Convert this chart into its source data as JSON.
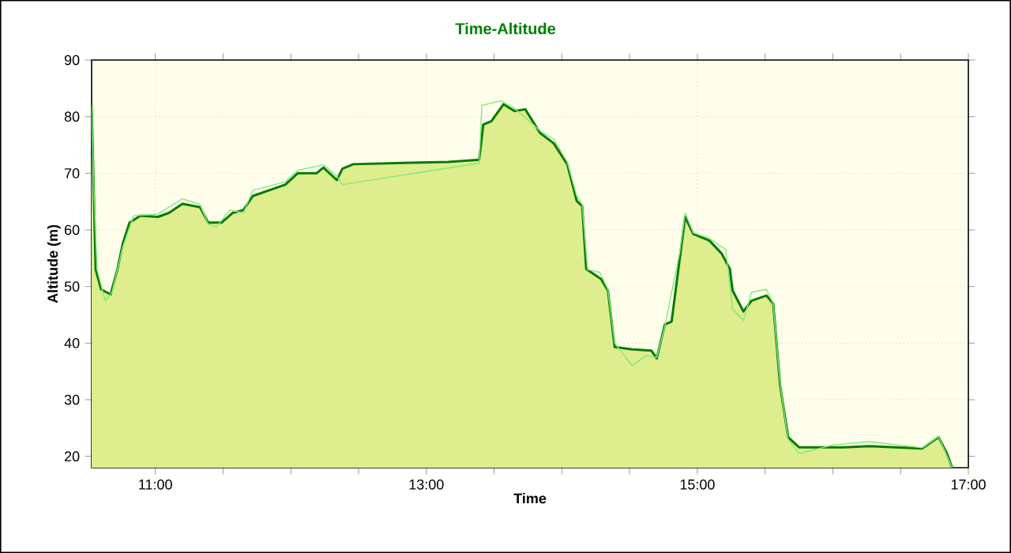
{
  "chart_data": {
    "type": "area",
    "title": "Time-Altitude",
    "xlabel": "Time",
    "ylabel": "Altitude (m)",
    "xlim": [
      10.53,
      17
    ],
    "ylim": [
      18,
      90
    ],
    "xticks": [
      {
        "value": 11,
        "label": "11:00"
      },
      {
        "value": 11.5,
        "label": null
      },
      {
        "value": 12,
        "label": null
      },
      {
        "value": 12.5,
        "label": null
      },
      {
        "value": 13,
        "label": "13:00"
      },
      {
        "value": 13.5,
        "label": null
      },
      {
        "value": 14,
        "label": null
      },
      {
        "value": 14.5,
        "label": null
      },
      {
        "value": 15,
        "label": "15:00"
      },
      {
        "value": 15.5,
        "label": null
      },
      {
        "value": 16,
        "label": null
      },
      {
        "value": 16.5,
        "label": null
      },
      {
        "value": 17,
        "label": "17:00"
      }
    ],
    "yticks": [
      20,
      30,
      40,
      50,
      60,
      70,
      80,
      90
    ],
    "grid": true,
    "marker": "none",
    "line_style": "solid",
    "series": [
      {
        "color": "#087a08",
        "x": [
          10.53,
          10.55,
          10.56,
          10.6,
          10.67,
          10.72,
          10.76,
          10.81,
          10.89,
          11.02,
          11.1,
          11.2,
          11.33,
          11.39,
          11.49,
          11.57,
          11.65,
          11.72,
          11.84,
          11.96,
          12.05,
          12.19,
          12.24,
          12.34,
          12.38,
          12.46,
          12.77,
          13.16,
          13.39,
          13.42,
          13.48,
          13.57,
          13.65,
          13.73,
          13.84,
          13.94,
          14.04,
          14.11,
          14.15,
          14.18,
          14.29,
          14.34,
          14.39,
          14.52,
          14.66,
          14.7,
          14.76,
          14.81,
          14.87,
          14.91,
          14.97,
          15.09,
          15.18,
          15.24,
          15.26,
          15.34,
          15.4,
          15.51,
          15.56,
          15.61,
          15.67,
          15.75,
          16.08,
          16.27,
          16.66,
          16.78,
          16.84,
          16.88
        ],
        "values": [
          82,
          63,
          53,
          49.5,
          48.6,
          53,
          57.6,
          61.3,
          62.5,
          62.3,
          63,
          64.6,
          64,
          61.3,
          61.3,
          63,
          63.5,
          66,
          67,
          68,
          70,
          70,
          71,
          68.8,
          70.8,
          71.6,
          71.8,
          72,
          72.4,
          78.6,
          79.2,
          82.2,
          81,
          81.3,
          77.1,
          75.3,
          71.6,
          65.1,
          64.2,
          53.1,
          51.3,
          49.3,
          39.3,
          38.9,
          38.7,
          37.3,
          43.3,
          43.8,
          54.9,
          62.3,
          59.3,
          58.1,
          55.8,
          53.1,
          49.3,
          45.6,
          47.5,
          48.4,
          47,
          32.7,
          23.4,
          21.6,
          21.6,
          21.8,
          21.4,
          23.4,
          20.6,
          18
        ]
      },
      {
        "type": "line",
        "color": "#80e880",
        "x": [
          10.53,
          10.55,
          10.57,
          10.63,
          10.68,
          10.76,
          10.84,
          11.02,
          11.2,
          11.33,
          11.39,
          11.45,
          11.55,
          11.65,
          11.72,
          11.96,
          12.05,
          12.24,
          12.34,
          12.38,
          13.39,
          13.41,
          13.55,
          13.65,
          13.84,
          13.94,
          14.04,
          14.11,
          14.15,
          14.19,
          14.28,
          14.34,
          14.39,
          14.52,
          14.62,
          14.7,
          14.76,
          14.87,
          14.91,
          14.97,
          15.09,
          15.21,
          15.26,
          15.34,
          15.4,
          15.51,
          15.56,
          15.61,
          15.67,
          15.75,
          16.0,
          16.27,
          16.66,
          16.78,
          16.88
        ],
        "values": [
          82,
          65,
          53,
          47.5,
          49,
          57,
          62.5,
          62.8,
          65.5,
          64.5,
          61,
          60.5,
          63.5,
          63,
          67,
          68.5,
          70.5,
          71.5,
          69.5,
          68,
          71.8,
          82,
          82.8,
          81.5,
          77.5,
          76,
          72,
          66,
          64.5,
          53,
          52.5,
          49.5,
          40,
          36,
          37.8,
          37.5,
          43,
          56,
          63,
          59.5,
          58.5,
          56.5,
          46,
          44,
          49,
          49.5,
          47,
          33,
          23,
          20.5,
          22,
          22.6,
          21.5,
          23.5,
          18
        ]
      }
    ]
  }
}
